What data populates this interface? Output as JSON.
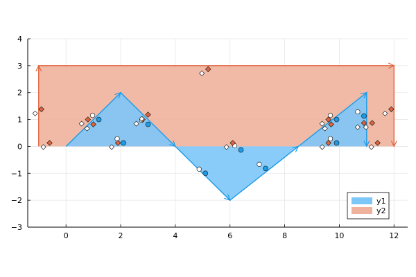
{
  "chart_data": {
    "type": "area",
    "title": "",
    "xlabel": "",
    "ylabel": "",
    "xlim": [
      -1.4,
      12.5
    ],
    "ylim": [
      -3,
      4
    ],
    "x_ticks": [
      0,
      2,
      4,
      6,
      8,
      10,
      12
    ],
    "y_ticks": [
      -3,
      -2,
      -1,
      0,
      1,
      2,
      3,
      4
    ],
    "x_tick_labels": [
      "0",
      "2",
      "4",
      "6",
      "8",
      "10",
      "12"
    ],
    "y_tick_labels": [
      "−3",
      "−2",
      "−1",
      "0",
      "1",
      "2",
      "3",
      "4"
    ],
    "grid": true,
    "legend_position": "bottom-right",
    "series": [
      {
        "name": "y1",
        "color": "#1b9be8",
        "fill_color": "#7dc7f8",
        "x": [
          0,
          2,
          4,
          6,
          8.5,
          11,
          11
        ],
        "y": [
          0,
          2,
          0,
          -2,
          0,
          2,
          0
        ],
        "fill_to": 0
      },
      {
        "name": "y2",
        "color": "#e0643c",
        "fill_color": "#efb39d",
        "x": [
          -1,
          -1,
          12,
          12
        ],
        "y": [
          0,
          3,
          3,
          0
        ],
        "fill_to": 0
      }
    ],
    "markers": {
      "y1": [
        {
          "x": 2.1,
          "y": 0.13
        },
        {
          "x": 3.0,
          "y": 0.82
        },
        {
          "x": 1.2,
          "y": 1.0
        },
        {
          "x": 5.1,
          "y": -1.0
        },
        {
          "x": 6.4,
          "y": -0.13
        },
        {
          "x": 7.3,
          "y": -0.82
        },
        {
          "x": 9.9,
          "y": 0.13
        },
        {
          "x": 9.9,
          "y": 1.0
        },
        {
          "x": 10.9,
          "y": 1.13
        }
      ],
      "y2": [
        {
          "x": -0.6,
          "y": 0.13
        },
        {
          "x": -0.9,
          "y": 1.38
        },
        {
          "x": 1.0,
          "y": 0.82
        },
        {
          "x": 0.8,
          "y": 1.0
        },
        {
          "x": 1.9,
          "y": 0.13
        },
        {
          "x": 2.8,
          "y": 1.0
        },
        {
          "x": 3.0,
          "y": 1.18
        },
        {
          "x": 5.2,
          "y": 2.87
        },
        {
          "x": 6.1,
          "y": 0.13
        },
        {
          "x": 9.6,
          "y": 1.0
        },
        {
          "x": 9.7,
          "y": 0.82
        },
        {
          "x": 9.6,
          "y": 0.13
        },
        {
          "x": 10.9,
          "y": 0.87
        },
        {
          "x": 11.2,
          "y": 0.87
        },
        {
          "x": 11.4,
          "y": 0.13
        },
        {
          "x": 11.9,
          "y": 1.38
        }
      ]
    }
  }
}
